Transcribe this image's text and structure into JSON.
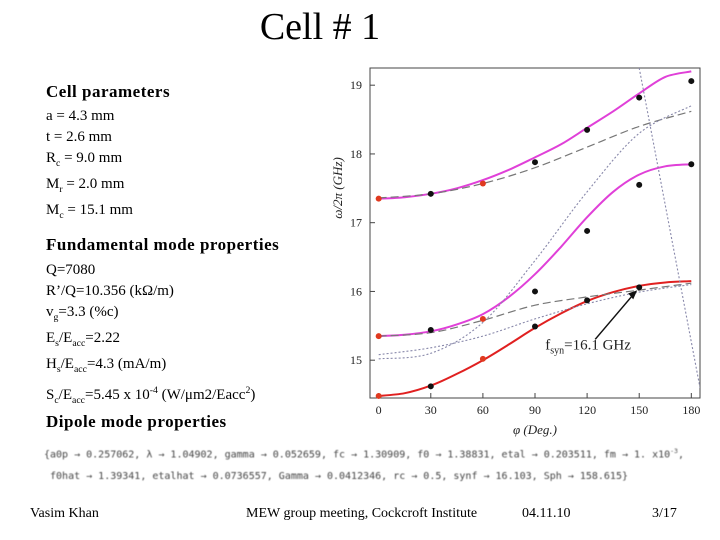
{
  "title": "Cell # 1",
  "params": {
    "heading": "Cell parameters",
    "items": [
      {
        "main": "a = 4.3 mm"
      },
      {
        "main": "t = 2.6 mm"
      },
      {
        "pre": "R",
        "sub": "c",
        "post": " = 9.0 mm"
      },
      {
        "pre": "M",
        "sub": "r",
        "post": " = 2.0 mm"
      },
      {
        "pre": "M",
        "sub": "c",
        "post": " = 15.1 mm"
      }
    ]
  },
  "fundamental": {
    "heading": "Fundamental mode properties",
    "q": "Q=7080",
    "rq": "R’/Q=10.356 (kΩ/m)",
    "vg": {
      "pre": "v",
      "sub": "g",
      "post": "=3.3 (%c)"
    },
    "es": {
      "a": "E",
      "a_sub": "s",
      "b": "/E",
      "b_sub": "acc",
      "c": "=2.22"
    },
    "hs": {
      "a": "H",
      "a_sub": "s",
      "b": "/E",
      "b_sub": "acc",
      "c": "=4.3 (mA/m)"
    },
    "sc": {
      "a": "S",
      "a_sub": "c",
      "b": "/E",
      "b_sub": "acc",
      "c": "=5.45 x 10",
      "exp": "-4",
      "d": " (W/μm2/Eacc",
      "exp2": "2",
      "e": ")"
    }
  },
  "dipole": {
    "heading": "Dipole mode properties",
    "line1": "{a0p → 0.257062, λ → 1.04902, gamma → 0.052659, fc → 1.30909, f0 → 1.38831, etal → 0.203511, fm → 1. x10",
    "line1_exp": "-3",
    "line1_end": ",",
    "line2": " f0hat → 1.39341, etalhat → 0.0736557, Gamma → 0.0412346, rc → 0.5, synf → 16.103, Sph → 158.615}"
  },
  "footer": {
    "author": "Vasim Khan",
    "event": "MEW group meeting, Cockcroft Institute",
    "date": "04.11.10",
    "page": "3/17"
  },
  "annotation": {
    "pre": "f",
    "sub": "syn",
    "post": "=16.1 GHz"
  },
  "chart_data": {
    "type": "line",
    "xlabel": "φ (Deg.)",
    "ylabel": "ω/2π (GHz)",
    "xlim": [
      -5,
      185
    ],
    "ylim": [
      14.45,
      19.25
    ],
    "xticks": [
      0,
      30,
      60,
      90,
      120,
      150,
      180
    ],
    "yticks": [
      15,
      16,
      17,
      18,
      19
    ],
    "series": [
      {
        "name": "upper curve (magenta)",
        "color": "#e040d8",
        "style": "solid",
        "x": [
          0,
          15,
          30,
          45,
          60,
          75,
          90,
          105,
          120,
          135,
          150,
          165,
          180
        ],
        "y": [
          17.35,
          17.37,
          17.42,
          17.5,
          17.62,
          17.77,
          17.95,
          18.14,
          18.38,
          18.62,
          18.88,
          19.12,
          19.2
        ]
      },
      {
        "name": "middle curve (magenta)",
        "color": "#e040d8",
        "style": "solid",
        "x": [
          0,
          15,
          30,
          45,
          60,
          75,
          90,
          105,
          120,
          135,
          150,
          165,
          180
        ],
        "y": [
          15.35,
          15.37,
          15.42,
          15.52,
          15.67,
          15.92,
          16.25,
          16.65,
          17.08,
          17.45,
          17.7,
          17.82,
          17.85
        ]
      },
      {
        "name": "lower curve (red)",
        "color": "#e02020",
        "style": "solid",
        "x": [
          0,
          15,
          30,
          45,
          60,
          75,
          90,
          105,
          120,
          135,
          150,
          165,
          180
        ],
        "y": [
          14.48,
          14.52,
          14.63,
          14.8,
          15.0,
          15.23,
          15.47,
          15.68,
          15.86,
          15.99,
          16.08,
          16.13,
          16.15
        ]
      },
      {
        "name": "dashed upper",
        "color": "#777777",
        "style": "dashed",
        "x": [
          0,
          30,
          60,
          90,
          120,
          150,
          180
        ],
        "y": [
          17.36,
          17.42,
          17.57,
          17.8,
          18.1,
          18.4,
          18.62
        ]
      },
      {
        "name": "dashed lower",
        "color": "#777777",
        "style": "dashed",
        "x": [
          0,
          30,
          60,
          90,
          120,
          150,
          180
        ],
        "y": [
          15.35,
          15.4,
          15.58,
          15.8,
          15.92,
          16.02,
          16.12
        ]
      },
      {
        "name": "dotted upper",
        "color": "#8888aa",
        "style": "dotted",
        "x": [
          0,
          30,
          60,
          90,
          120,
          150,
          180
        ],
        "y": [
          15.02,
          15.1,
          15.55,
          16.45,
          17.45,
          18.3,
          18.7
        ]
      },
      {
        "name": "dotted lower",
        "color": "#8888aa",
        "style": "dotted",
        "x": [
          0,
          30,
          60,
          90,
          120,
          150,
          180
        ],
        "y": [
          15.08,
          15.18,
          15.35,
          15.6,
          15.82,
          15.99,
          16.1
        ]
      },
      {
        "name": "light line",
        "color": "#8888aa",
        "style": "dotted",
        "x": [
          150,
          185
        ],
        "y": [
          19.25,
          14.6
        ]
      }
    ],
    "points": [
      {
        "x": 0,
        "y": 17.35,
        "color": "red"
      },
      {
        "x": 30,
        "y": 17.42,
        "color": "black"
      },
      {
        "x": 60,
        "y": 17.57,
        "color": "red"
      },
      {
        "x": 90,
        "y": 17.88,
        "color": "black"
      },
      {
        "x": 120,
        "y": 18.35,
        "color": "black"
      },
      {
        "x": 150,
        "y": 18.82,
        "color": "black"
      },
      {
        "x": 180,
        "y": 19.06,
        "color": "black"
      },
      {
        "x": 0,
        "y": 15.35,
        "color": "red"
      },
      {
        "x": 30,
        "y": 15.44,
        "color": "black"
      },
      {
        "x": 60,
        "y": 15.6,
        "color": "red"
      },
      {
        "x": 90,
        "y": 16.0,
        "color": "black"
      },
      {
        "x": 120,
        "y": 16.88,
        "color": "black"
      },
      {
        "x": 150,
        "y": 17.55,
        "color": "black"
      },
      {
        "x": 180,
        "y": 17.85,
        "color": "black"
      },
      {
        "x": 0,
        "y": 14.48,
        "color": "red"
      },
      {
        "x": 30,
        "y": 14.62,
        "color": "black"
      },
      {
        "x": 60,
        "y": 15.02,
        "color": "red"
      },
      {
        "x": 90,
        "y": 15.49,
        "color": "black"
      },
      {
        "x": 120,
        "y": 15.87,
        "color": "black"
      },
      {
        "x": 150,
        "y": 16.06,
        "color": "black"
      }
    ]
  }
}
